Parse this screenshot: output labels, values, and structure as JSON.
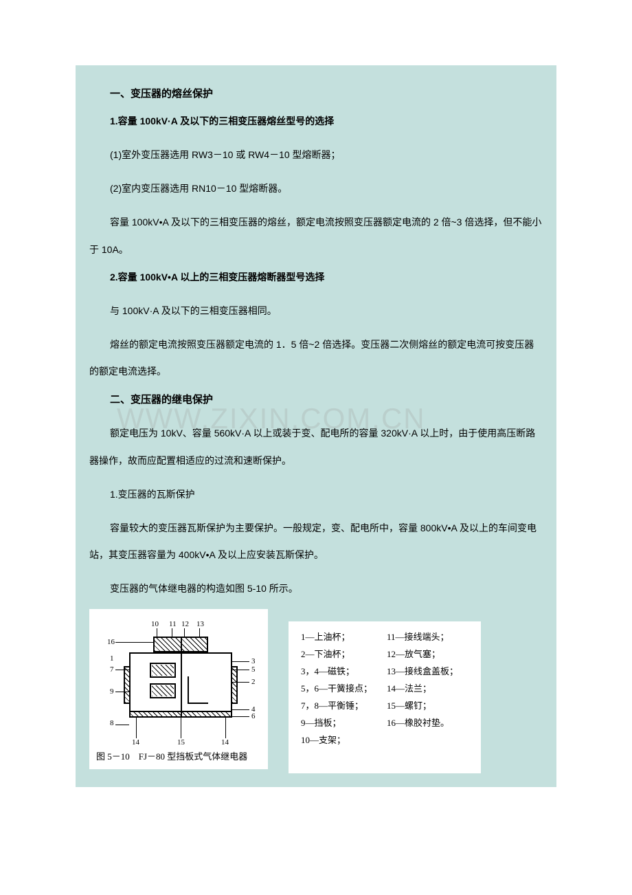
{
  "colors": {
    "page_bg": "#ffffff",
    "content_bg": "#c4e0dd",
    "text": "#000000",
    "watermark": "rgba(155,155,155,0.25)",
    "panel_bg": "#ffffff"
  },
  "watermark": "WWW.ZIXIN.COM.CN",
  "section1": {
    "title": "一、变压器的熔丝保护",
    "sub1": {
      "title": "1.容量 100kV·A 及以下的三相变压器熔丝型号的选择",
      "p1": "(1)室外变压器选用 RW3－10 或 RW4－10 型熔断器；",
      "p2": "(2)室内变压器选用 RN10－10 型熔断器。",
      "p3": "容量 100kV•A 及以下的三相变压器的熔丝，额定电流按照变压器额定电流的 2 倍~3 倍选择，但不能小于 10A。"
    },
    "sub2": {
      "title": "2.容量 100kV•A 以上的三相变压器熔断器型号选择",
      "p1": "与 100kV·A 及以下的三相变压器相同。",
      "p2": "熔丝的额定电流按照变压器额定电流的 1．5 倍~2 倍选择。变压器二次侧熔丝的额定电流可按变压器的额定电流选择。"
    }
  },
  "section2": {
    "title": "二、变压器的继电保护",
    "p1": "额定电压为 10kV、容量 560kV·A 以上或装于变、配电所的容量 320kV·A 以上时，由于使用高压断路器操作，故而应配置相适应的过流和速断保护。",
    "p2": "1.变压器的瓦斯保护",
    "p3": "容量较大的变压器瓦斯保护为主要保护。一般规定，变、配电所中，容量 800kV•A 及以上的车间变电站，其变压器容量为 400kV•A 及以上应安装瓦斯保护。",
    "p4": " 变压器的气体继电器的构造如图 5-10 所示。"
  },
  "figure": {
    "caption": "图 5－10　FJ－80 型挡板式气体继电器",
    "callouts": [
      "1",
      "2",
      "3",
      "4",
      "5",
      "6",
      "7",
      "8",
      "9",
      "10",
      "11",
      "12",
      "13",
      "14",
      "15",
      "16"
    ],
    "legend": [
      {
        "n": "1",
        "t": "上油杯；"
      },
      {
        "n": "11",
        "t": "接线端头；"
      },
      {
        "n": "2",
        "t": "下油杯；"
      },
      {
        "n": "12",
        "t": "放气塞；"
      },
      {
        "n": "3，4",
        "t": "磁铁；"
      },
      {
        "n": "13",
        "t": "接线盒盖板；"
      },
      {
        "n": "5，6",
        "t": "干簧接点；"
      },
      {
        "n": "14",
        "t": "法兰；"
      },
      {
        "n": "7，8",
        "t": "平衡锤；"
      },
      {
        "n": "15",
        "t": "螺钉；"
      },
      {
        "n": "9",
        "t": "挡板；"
      },
      {
        "n": "16",
        "t": "橡胶衬垫。"
      },
      {
        "n": "10",
        "t": "支架；"
      },
      {
        "n": "",
        "t": ""
      }
    ]
  }
}
